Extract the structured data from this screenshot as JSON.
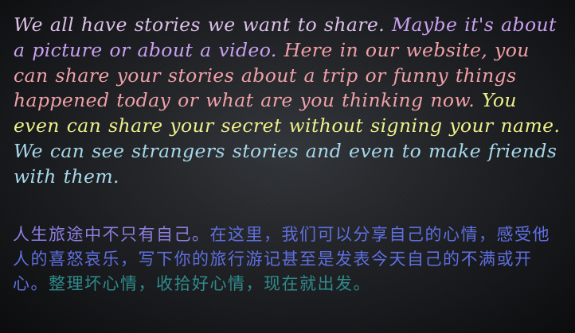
{
  "english_paragraph": {
    "segments": [
      {
        "text": "  We all have stories we want to share. ",
        "color": "#dcc0ea"
      },
      {
        "text": "Maybe it's about a picture or about a video. ",
        "color": "#c9a0f0"
      },
      {
        "text": "Here in our website, you can share your stories about a trip or funny things happened today or what are you thinking now. ",
        "color": "#f0a0a8"
      },
      {
        "text": "You even can share your secret without signing your name. ",
        "color": "#eef08a"
      },
      {
        "text": "We can see strangers stories and even to make friends with them.",
        "color": "#a6d8ea"
      }
    ]
  },
  "chinese_paragraph": {
    "segments": [
      {
        "text": "    人生旅途中不只有自己。",
        "color": "#8b7fe0"
      },
      {
        "text": "在这里，我们可以分享自己的心情，感受他人的喜怒哀乐，写下你的旅行游记甚至是发表今天自己的不满或开心。",
        "color": "#5f6fe0"
      },
      {
        "text": "整理坏心情，收拾好心情，现在就出发。",
        "color": "#2f8a8c"
      }
    ]
  }
}
